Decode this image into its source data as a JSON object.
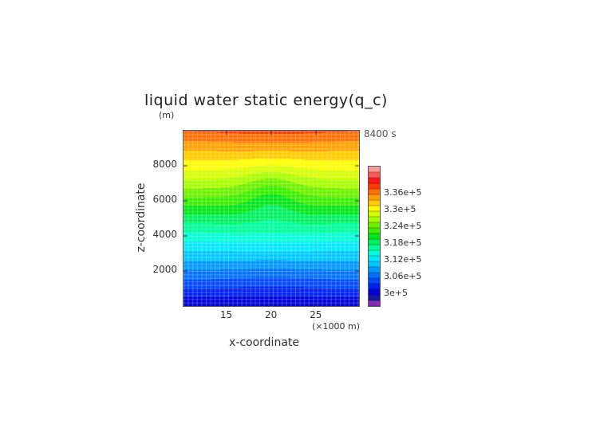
{
  "chart_data": {
    "type": "heatmap",
    "subtype": "filled-contour",
    "title": "liquid water static energy(q_c)",
    "y_unit_label": "(m)",
    "time_label": "8400 s",
    "xlabel": "x-coordinate",
    "x_unit_label": "(×1000 m)",
    "ylabel": "z-coordinate",
    "xlim": [
      10.2,
      29.8
    ],
    "ylim": [
      0,
      10000
    ],
    "x_ticks": [
      "15",
      "20",
      "25"
    ],
    "x_tick_values": [
      15,
      20,
      25
    ],
    "y_ticks": [
      "2000",
      "4000",
      "6000",
      "8000"
    ],
    "y_tick_values": [
      2000,
      4000,
      6000,
      8000
    ],
    "contour_levels_start": 298000,
    "contour_levels_step": 2000,
    "contour_levels_count": 22,
    "colorbar_labels": [
      "3.36e+5",
      "3.3e+5",
      "3.24e+5",
      "3.18e+5",
      "3.12e+5",
      "3.06e+5",
      "3e+5"
    ],
    "colorbar_label_values": [
      336000,
      330000,
      324000,
      318000,
      312000,
      306000,
      300000
    ],
    "field_description_values": {
      "surface_value": 300000,
      "top_value": 338500,
      "perturbation_center_x": 20,
      "perturbation_center_z": 6300,
      "perturbation_amplitude": 2500
    },
    "colors": [
      "#8a2ab8",
      "#1818a0",
      "#0000d8",
      "#0020f0",
      "#0048ff",
      "#0070ff",
      "#0098ff",
      "#00c8ff",
      "#00e8ff",
      "#00ffd8",
      "#00ff9c",
      "#00f060",
      "#00e818",
      "#38f000",
      "#6ef000",
      "#a8ff00",
      "#d8ff00",
      "#ffff00",
      "#ffcc00",
      "#ffa000",
      "#ff7000",
      "#ff3c00",
      "#ff1818",
      "#ff5a5a",
      "#ff9a9a"
    ]
  }
}
